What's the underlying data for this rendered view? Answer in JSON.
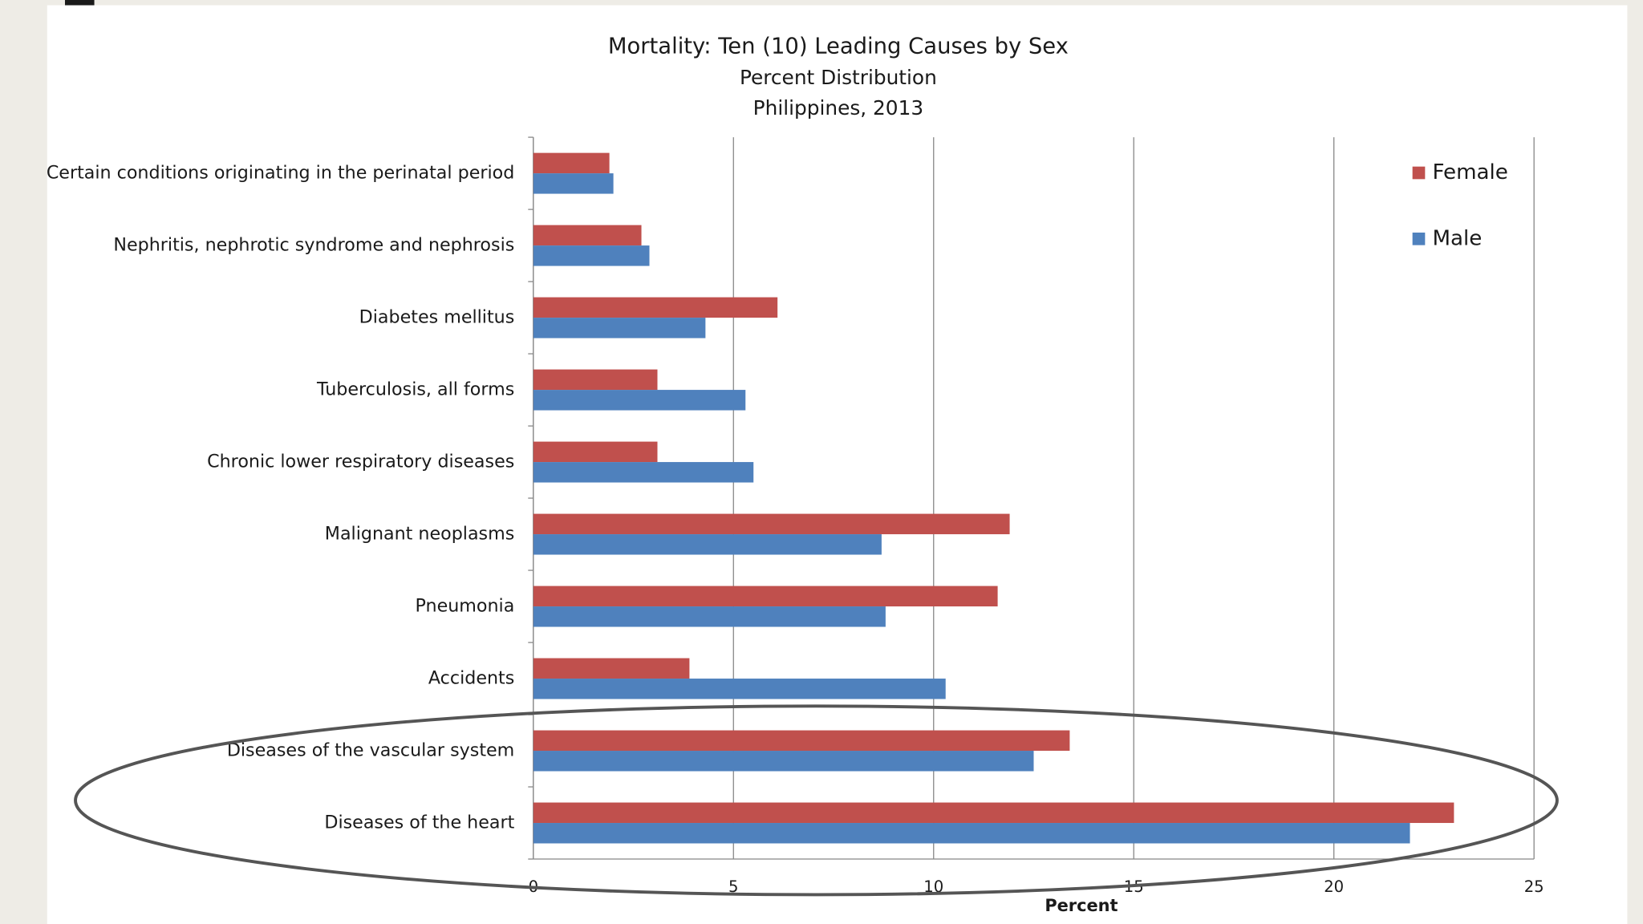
{
  "chart_data": {
    "type": "hbar",
    "title": "Mortality: Ten (10) Leading Causes by Sex",
    "subtitle": [
      "Percent Distribution",
      "Philippines, 2013"
    ],
    "xlabel": "Percent",
    "categories": [
      "Certain conditions originating in the perinatal period",
      "Nephritis, nephrotic syndrome and nephrosis",
      "Diabetes mellitus",
      "Tuberculosis, all forms",
      "Chronic lower respiratory diseases",
      "Malignant neoplasms",
      "Pneumonia",
      "Accidents",
      "Diseases of the vascular system",
      "Diseases of the heart"
    ],
    "series": [
      {
        "name": "Female",
        "color": "#c0504d",
        "values": [
          1.9,
          2.7,
          6.1,
          3.1,
          3.1,
          11.9,
          11.6,
          3.9,
          13.4,
          23.0
        ]
      },
      {
        "name": "Male",
        "color": "#4f81bd",
        "values": [
          2.0,
          2.9,
          4.3,
          5.3,
          5.5,
          8.7,
          8.8,
          10.3,
          12.5,
          21.9
        ]
      }
    ],
    "xlim": [
      0,
      25
    ],
    "xticks": [
      0,
      5,
      10,
      15,
      20,
      25
    ],
    "grid": true,
    "legend": "top-right"
  }
}
